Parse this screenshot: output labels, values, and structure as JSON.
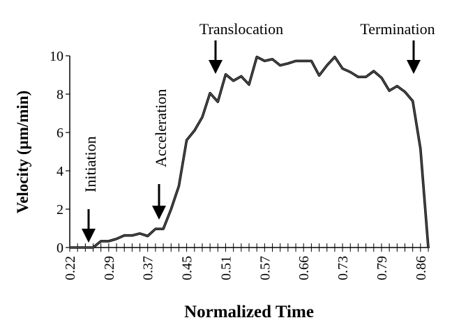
{
  "chart_data": {
    "type": "line",
    "title": "",
    "xlabel": "Normalized Time",
    "ylabel": "Velocity (µm/min)",
    "ylim": [
      0,
      10
    ],
    "y_ticks": [
      "0",
      "2",
      "4",
      "6",
      "8",
      "10"
    ],
    "x_tick_labels": [
      "0.22",
      "0.29",
      "0.37",
      "0.45",
      "0.51",
      "0.57",
      "0.66",
      "0.73",
      "0.79",
      "0.86"
    ],
    "x_tick_label_every": 5,
    "grid": false,
    "line_color": "#555555",
    "series": [
      {
        "values": [
          0,
          0,
          0,
          0,
          0.33,
          0.33,
          0.45,
          0.63,
          0.63,
          0.73,
          0.6,
          0.97,
          0.97,
          2.0,
          3.2,
          5.6,
          6.1,
          6.8,
          8.05,
          7.6,
          9.03,
          8.7,
          8.93,
          8.5,
          9.94,
          9.73,
          9.82,
          9.5,
          9.6,
          9.73,
          9.73,
          9.73,
          8.97,
          9.5,
          9.94,
          9.33,
          9.15,
          8.9,
          8.9,
          9.2,
          8.85,
          8.18,
          8.42,
          8.12,
          7.64,
          5.15,
          0
        ]
      }
    ],
    "annotations": [
      {
        "text": "Initiation",
        "index": 2.5,
        "orientation": "vertical"
      },
      {
        "text": "Acceleration",
        "index": 11.5,
        "orientation": "vertical"
      },
      {
        "text": "Translocation",
        "index": 18.9,
        "orientation": "horizontal"
      },
      {
        "text": "Termination",
        "index": 44.5,
        "orientation": "horizontal"
      }
    ]
  }
}
